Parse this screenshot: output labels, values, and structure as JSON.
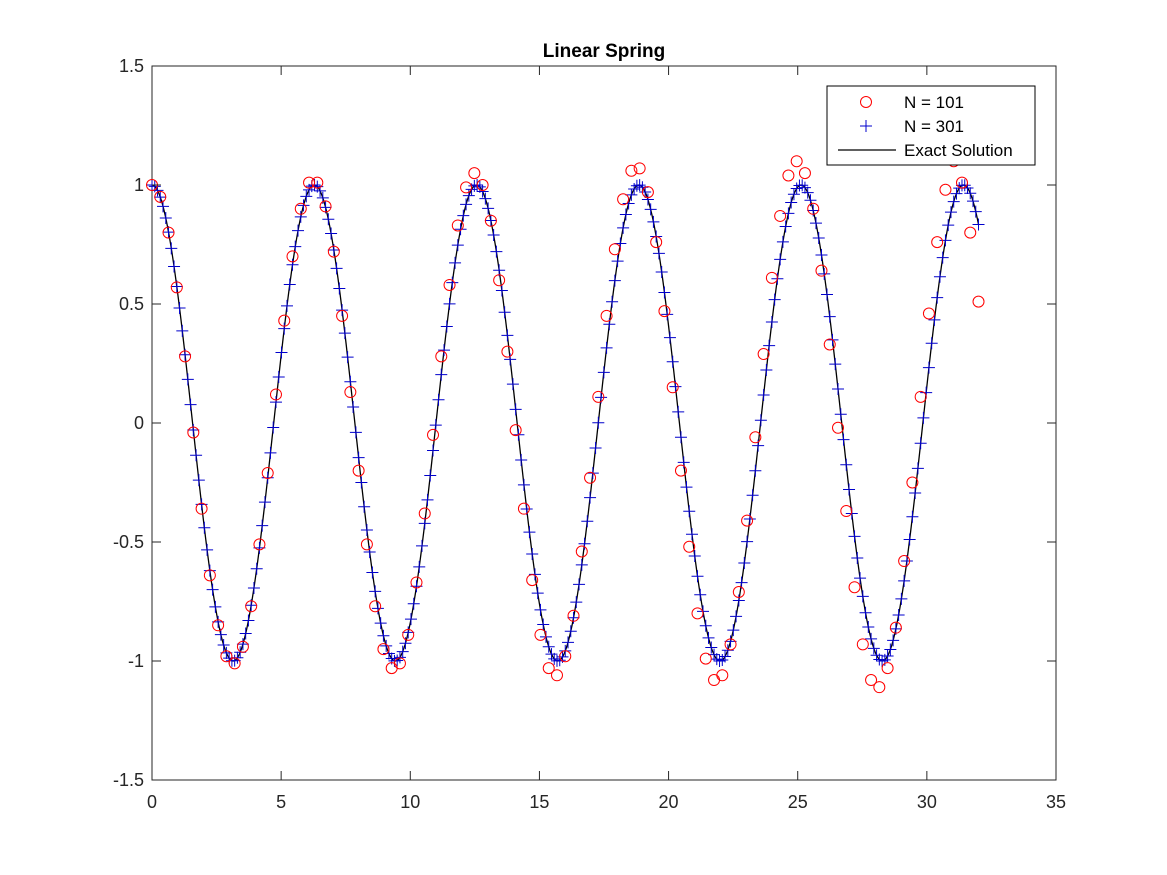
{
  "chart_data": {
    "type": "line",
    "title": "Linear Spring",
    "xlabel": "",
    "ylabel": "",
    "xlim": [
      0,
      35
    ],
    "ylim": [
      -1.5,
      1.5
    ],
    "xticks": [
      0,
      5,
      10,
      15,
      20,
      25,
      30,
      35
    ],
    "yticks": [
      -1.5,
      -1,
      -0.5,
      0,
      0.5,
      1,
      1.5
    ],
    "xtick_labels": [
      "0",
      "5",
      "10",
      "15",
      "20",
      "25",
      "30",
      "35"
    ],
    "ytick_labels": [
      "-1.5",
      "-1",
      "-0.5",
      "0",
      "0.5",
      "1",
      "1.5"
    ],
    "grid": false,
    "box": true,
    "legend_position": "top-right",
    "series": [
      {
        "name": "N = 101",
        "marker": "circle",
        "color": "#ff0000",
        "line": false,
        "x": [
          0,
          0.32,
          0.64,
          0.96,
          1.28,
          1.6,
          1.92,
          2.24,
          2.56,
          2.88,
          3.2,
          3.52,
          3.84,
          4.16,
          4.48,
          4.8,
          5.12,
          5.44,
          5.76,
          6.08,
          6.4,
          6.72,
          7.04,
          7.36,
          7.68,
          8.0,
          8.32,
          8.64,
          8.96,
          9.28,
          9.6,
          9.92,
          10.24,
          10.56,
          10.88,
          11.2,
          11.52,
          11.84,
          12.16,
          12.48,
          12.8,
          13.12,
          13.44,
          13.76,
          14.08,
          14.4,
          14.72,
          15.04,
          15.36,
          15.68,
          16.0,
          16.32,
          16.64,
          16.96,
          17.28,
          17.6,
          17.92,
          18.24,
          18.56,
          18.88,
          19.2,
          19.52,
          19.84,
          20.16,
          20.48,
          20.8,
          21.12,
          21.44,
          21.76,
          22.08,
          22.4,
          22.72,
          23.04,
          23.36,
          23.68,
          24.0,
          24.32,
          24.64,
          24.96,
          25.28,
          25.6,
          25.92,
          26.24,
          26.56,
          26.88,
          27.2,
          27.52,
          27.84,
          28.16,
          28.48,
          28.8,
          29.12,
          29.44,
          29.76,
          30.08,
          30.4,
          30.72,
          31.04,
          31.36,
          31.68,
          32.0
        ],
        "y": [
          1.0,
          0.95,
          0.8,
          0.57,
          0.28,
          -0.04,
          -0.36,
          -0.64,
          -0.85,
          -0.98,
          -1.01,
          -0.94,
          -0.77,
          -0.51,
          -0.21,
          0.12,
          0.43,
          0.7,
          0.9,
          1.01,
          1.01,
          0.91,
          0.72,
          0.45,
          0.13,
          -0.2,
          -0.51,
          -0.77,
          -0.95,
          -1.03,
          -1.01,
          -0.89,
          -0.67,
          -0.38,
          -0.05,
          0.28,
          0.58,
          0.83,
          0.99,
          1.05,
          1.0,
          0.85,
          0.6,
          0.3,
          -0.03,
          -0.36,
          -0.66,
          -0.89,
          -1.03,
          -1.06,
          -0.98,
          -0.81,
          -0.54,
          -0.23,
          0.11,
          0.45,
          0.73,
          0.94,
          1.06,
          1.07,
          0.97,
          0.76,
          0.47,
          0.15,
          -0.2,
          -0.52,
          -0.8,
          -0.99,
          -1.08,
          -1.06,
          -0.93,
          -0.71,
          -0.41,
          -0.06,
          0.29,
          0.61,
          0.87,
          1.04,
          1.1,
          1.05,
          0.9,
          0.64,
          0.33,
          -0.02,
          -0.37,
          -0.69,
          -0.93,
          -1.08,
          -1.11,
          -1.03,
          -0.86,
          -0.58,
          -0.25,
          0.11,
          0.46,
          0.76,
          0.98,
          1.1,
          1.01,
          0.8,
          0.51
        ]
      },
      {
        "name": "N = 301",
        "marker": "plus",
        "color": "#0000cc",
        "line": false,
        "x_range": [
          0,
          32
        ],
        "count": 301,
        "function": "cos(x)"
      },
      {
        "name": "Exact Solution",
        "marker": "none",
        "color": "#000000",
        "line": true,
        "x_range": [
          0,
          32
        ],
        "function": "cos(x)"
      }
    ]
  }
}
